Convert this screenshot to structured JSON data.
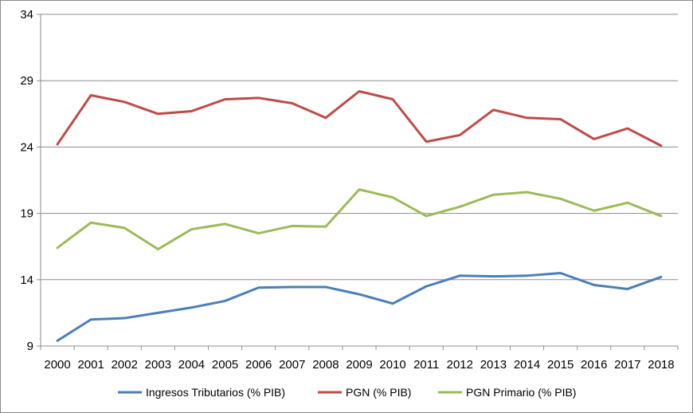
{
  "chart_data": {
    "type": "line",
    "title": "",
    "xlabel": "",
    "ylabel": "",
    "ylim": [
      9,
      34
    ],
    "yticks": [
      9,
      14,
      19,
      24,
      29,
      34
    ],
    "grid": "horizontal",
    "legend_position": "bottom",
    "categories": [
      "2000",
      "2001",
      "2002",
      "2003",
      "2004",
      "2005",
      "2006",
      "2007",
      "2008",
      "2009",
      "2010",
      "2011",
      "2012",
      "2013",
      "2014",
      "2015",
      "2016",
      "2017",
      "2018"
    ],
    "series": [
      {
        "name": "Ingresos Tributarios (% PIB)",
        "color": "#4a7ebb",
        "values": [
          9.4,
          11.0,
          11.1,
          11.5,
          11.9,
          12.4,
          13.4,
          13.45,
          13.45,
          12.9,
          12.2,
          13.5,
          14.3,
          14.25,
          14.3,
          14.5,
          13.6,
          13.3,
          14.2
        ]
      },
      {
        "name": "PGN (% PIB)",
        "color": "#be4b48",
        "values": [
          24.2,
          27.9,
          27.4,
          26.5,
          26.7,
          27.6,
          27.7,
          27.3,
          26.2,
          28.2,
          27.6,
          24.4,
          24.9,
          26.8,
          26.2,
          26.1,
          24.6,
          25.4,
          24.1
        ]
      },
      {
        "name": "PGN Primario (% PIB)",
        "color": "#9bbb59",
        "values": [
          16.4,
          18.3,
          17.9,
          16.3,
          17.8,
          18.2,
          17.5,
          18.05,
          18.0,
          20.8,
          20.2,
          18.8,
          19.5,
          20.4,
          20.6,
          20.1,
          19.2,
          19.8,
          18.8
        ]
      }
    ]
  }
}
